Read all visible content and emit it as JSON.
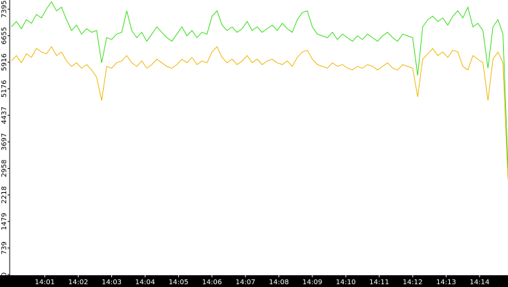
{
  "chart_data": {
    "type": "line",
    "x": [
      0,
      0.15,
      0.3,
      0.45,
      0.6,
      0.75,
      0.9,
      1.05,
      1.2,
      1.35,
      1.5,
      1.65,
      1.8,
      1.95,
      2.1,
      2.25,
      2.4,
      2.55,
      2.7,
      2.85,
      3,
      3.15,
      3.3,
      3.45,
      3.6,
      3.75,
      3.9,
      4.05,
      4.2,
      4.35,
      4.5,
      4.65,
      4.8,
      4.95,
      5.1,
      5.25,
      5.4,
      5.55,
      5.7,
      5.85,
      6,
      6.15,
      6.3,
      6.45,
      6.6,
      6.75,
      6.9,
      7.05,
      7.2,
      7.35,
      7.5,
      7.65,
      7.8,
      7.95,
      8.1,
      8.25,
      8.4,
      8.55,
      8.7,
      8.85,
      9,
      9.15,
      9.3,
      9.45,
      9.6,
      9.75,
      9.9,
      10.05,
      10.2,
      10.35,
      10.5,
      10.65,
      10.8,
      10.95,
      11.1,
      11.25,
      11.4,
      11.55,
      11.7,
      11.85,
      12,
      12.15,
      12.3,
      12.45,
      12.6,
      12.75,
      12.9,
      13.05,
      13.2,
      13.35,
      13.5,
      13.65,
      13.8,
      13.95,
      14.1,
      14.25,
      14.4,
      14.55,
      14.7,
      14.85
    ],
    "series": [
      {
        "color": "#33dd11",
        "values": [
          6900,
          7050,
          6850,
          7100,
          7000,
          7250,
          7150,
          7400,
          7600,
          7350,
          7450,
          7100,
          6800,
          6950,
          6700,
          6850,
          6750,
          6800,
          5900,
          6600,
          6550,
          6700,
          6750,
          7350,
          6800,
          6600,
          6750,
          6500,
          6700,
          6900,
          6750,
          6600,
          6500,
          6700,
          6900,
          6650,
          6800,
          6600,
          6750,
          6700,
          7200,
          7350,
          6950,
          6800,
          6900,
          6750,
          6850,
          7050,
          6800,
          6900,
          6750,
          6850,
          6950,
          6800,
          7000,
          6850,
          6750,
          7100,
          7300,
          7350,
          6900,
          6700,
          6650,
          6600,
          6750,
          6550,
          6700,
          6600,
          6500,
          6650,
          6550,
          6700,
          6600,
          6500,
          6650,
          6750,
          6600,
          6500,
          6700,
          6650,
          6600,
          5550,
          6900,
          7100,
          7200,
          7050,
          7150,
          6950,
          7200,
          7350,
          7150,
          7450,
          6900,
          7000,
          6800,
          5750,
          6900,
          7100,
          6700,
          2950
        ]
      },
      {
        "color": "#f0b400",
        "values": [
          5950,
          6100,
          5900,
          6150,
          6050,
          6300,
          6200,
          6150,
          6350,
          6100,
          6200,
          5950,
          5800,
          5900,
          5750,
          5850,
          5700,
          5500,
          4850,
          5800,
          5750,
          5900,
          5950,
          6100,
          5900,
          5800,
          5950,
          5750,
          5850,
          6000,
          5900,
          5800,
          5750,
          5850,
          6000,
          5900,
          6050,
          5850,
          5950,
          5900,
          6200,
          6350,
          6050,
          5900,
          6000,
          5850,
          5950,
          6100,
          5900,
          6000,
          5850,
          5950,
          6000,
          5900,
          5850,
          5950,
          5800,
          6050,
          6200,
          6250,
          6000,
          5850,
          5800,
          5750,
          5900,
          5800,
          5850,
          5750,
          5700,
          5800,
          5750,
          5850,
          5800,
          5700,
          5800,
          5900,
          5750,
          5700,
          5850,
          5800,
          5750,
          4950,
          6000,
          6150,
          6300,
          6100,
          6200,
          6050,
          6250,
          6200,
          5800,
          5700,
          6100,
          6000,
          5900,
          4850,
          6000,
          6200,
          5900,
          2650
        ]
      }
    ],
    "xlim": [
      -0.05,
      14.85
    ],
    "xticks": [
      {
        "value": 1,
        "label": "14:01"
      },
      {
        "value": 2,
        "label": "14:02"
      },
      {
        "value": 3,
        "label": "14:03"
      },
      {
        "value": 4,
        "label": "14:04"
      },
      {
        "value": 5,
        "label": "14:05"
      },
      {
        "value": 6,
        "label": "14:06"
      },
      {
        "value": 7,
        "label": "14:07"
      },
      {
        "value": 8,
        "label": "14:08"
      },
      {
        "value": 9,
        "label": "14:09"
      },
      {
        "value": 10,
        "label": "14:10"
      },
      {
        "value": 11,
        "label": "14:11"
      },
      {
        "value": 12,
        "label": "14:12"
      },
      {
        "value": 13,
        "label": "14:13"
      },
      {
        "value": 14,
        "label": "14:14"
      }
    ],
    "ylim": [
      0,
      7650
    ],
    "yticks": [
      0,
      739,
      1479,
      2218,
      2958,
      3697,
      4437,
      5176,
      5916,
      6655,
      7395
    ]
  }
}
